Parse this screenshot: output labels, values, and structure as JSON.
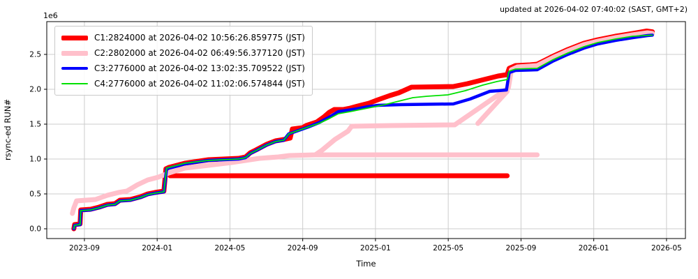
{
  "header": {
    "updated_text": "updated at 2026-04-02 07:40:02 (SAST, GMT+2)"
  },
  "chart_data": {
    "type": "line",
    "title": "",
    "xlabel": "Time",
    "ylabel": "rsync-ed RUN#",
    "y_offset_label": "1e6",
    "grid": true,
    "legend_position": "upper left",
    "x_unit": "months since 2023-01-01",
    "y_unit": "runs (millions, 1e6)",
    "xlim_months": [
      5.93,
      41.04
    ],
    "ylim": [
      -0.14,
      2.97
    ],
    "x_ticks": [
      {
        "month": 8,
        "label": "2023-09"
      },
      {
        "month": 12,
        "label": "2024-01"
      },
      {
        "month": 16,
        "label": "2024-05"
      },
      {
        "month": 20,
        "label": "2024-09"
      },
      {
        "month": 24,
        "label": "2025-01"
      },
      {
        "month": 28,
        "label": "2025-05"
      },
      {
        "month": 32,
        "label": "2025-09"
      },
      {
        "month": 36,
        "label": "2026-01"
      },
      {
        "month": 40,
        "label": "2026-05"
      }
    ],
    "y_ticks": [
      {
        "value": 0.0,
        "label": "0.0"
      },
      {
        "value": 0.5,
        "label": "0.5"
      },
      {
        "value": 1.0,
        "label": "1.0"
      },
      {
        "value": 1.5,
        "label": "1.5"
      },
      {
        "value": 2.0,
        "label": "2.0"
      },
      {
        "value": 2.5,
        "label": "2.5"
      }
    ],
    "series": [
      {
        "name": "C1",
        "legend": "C1:2824000 at 2026-04-02 10:56:26.859775 (JST)",
        "final_value": 2824000,
        "color": "#ff0000",
        "line_width": 7,
        "segments": [
          [
            [
              7.42,
              0.0
            ],
            [
              7.46,
              0.06
            ],
            [
              7.76,
              0.07
            ],
            [
              7.8,
              0.27
            ],
            [
              8.34,
              0.28
            ],
            [
              8.8,
              0.31
            ],
            [
              9.26,
              0.35
            ],
            [
              9.68,
              0.36
            ],
            [
              9.95,
              0.41
            ],
            [
              10.53,
              0.42
            ],
            [
              11.1,
              0.46
            ],
            [
              11.48,
              0.5
            ],
            [
              11.87,
              0.52
            ],
            [
              12.37,
              0.54
            ],
            [
              12.48,
              0.86
            ],
            [
              12.64,
              0.88
            ],
            [
              13.52,
              0.94
            ],
            [
              14.82,
              0.99
            ],
            [
              16.47,
              1.01
            ],
            [
              16.86,
              1.03
            ],
            [
              17.12,
              1.09
            ],
            [
              17.43,
              1.13
            ],
            [
              18.01,
              1.21
            ],
            [
              18.5,
              1.26
            ],
            [
              18.96,
              1.28
            ],
            [
              19.31,
              1.3
            ],
            [
              19.43,
              1.43
            ],
            [
              20.0,
              1.45
            ],
            [
              20.19,
              1.48
            ],
            [
              20.77,
              1.53
            ],
            [
              21.15,
              1.6
            ],
            [
              21.46,
              1.67
            ],
            [
              21.73,
              1.71
            ],
            [
              22.22,
              1.71
            ],
            [
              22.61,
              1.73
            ],
            [
              23.18,
              1.77
            ],
            [
              23.64,
              1.8
            ],
            [
              24.14,
              1.85
            ],
            [
              24.79,
              1.91
            ],
            [
              25.29,
              1.95
            ],
            [
              25.98,
              2.03
            ],
            [
              28.28,
              2.04
            ],
            [
              29.05,
              2.08
            ],
            [
              29.97,
              2.14
            ],
            [
              30.74,
              2.19
            ],
            [
              31.24,
              2.21
            ],
            [
              31.35,
              2.3
            ],
            [
              31.7,
              2.34
            ],
            [
              32.5,
              2.35
            ],
            [
              32.89,
              2.36
            ],
            [
              33.73,
              2.47
            ],
            [
              34.58,
              2.57
            ],
            [
              35.46,
              2.66
            ],
            [
              36.22,
              2.71
            ],
            [
              37.18,
              2.76
            ],
            [
              38.14,
              2.8
            ],
            [
              38.91,
              2.835
            ],
            [
              39.22,
              2.824
            ]
          ],
          [
            [
              12.71,
              0.76
            ],
            [
              31.24,
              0.76
            ]
          ]
        ]
      },
      {
        "name": "C2",
        "legend": "C2:2802000 at 2026-04-02 06:49:56.377120 (JST)",
        "final_value": 2802000,
        "color": "#ffc0cb",
        "line_width": 7,
        "segments": [
          [
            [
              7.34,
              0.22
            ],
            [
              7.42,
              0.3
            ],
            [
              7.57,
              0.4
            ],
            [
              8.61,
              0.42
            ],
            [
              9.26,
              0.48
            ],
            [
              9.87,
              0.52
            ],
            [
              10.33,
              0.54
            ],
            [
              10.91,
              0.63
            ],
            [
              11.48,
              0.7
            ],
            [
              12.06,
              0.74
            ],
            [
              12.64,
              0.8
            ],
            [
              13.52,
              0.87
            ],
            [
              14.82,
              0.91
            ],
            [
              16.09,
              0.95
            ],
            [
              16.86,
              0.98
            ],
            [
              17.62,
              1.01
            ],
            [
              18.66,
              1.03
            ],
            [
              19.27,
              1.05
            ],
            [
              20.69,
              1.06
            ],
            [
              21.08,
              1.13
            ],
            [
              21.77,
              1.28
            ],
            [
              22.49,
              1.4
            ],
            [
              22.69,
              1.47
            ],
            [
              24.91,
              1.48
            ],
            [
              28.36,
              1.49
            ],
            [
              31.31,
              2.02
            ],
            [
              31.47,
              2.28
            ],
            [
              31.8,
              2.32
            ],
            [
              32.89,
              2.34
            ],
            [
              33.73,
              2.45
            ],
            [
              34.58,
              2.55
            ],
            [
              35.46,
              2.64
            ],
            [
              36.22,
              2.69
            ],
            [
              37.18,
              2.74
            ],
            [
              38.14,
              2.78
            ],
            [
              38.95,
              2.81
            ],
            [
              39.22,
              2.802
            ]
          ],
          [
            [
              20.69,
              1.06
            ],
            [
              32.89,
              1.06
            ]
          ],
          [
            [
              29.63,
              1.51
            ],
            [
              31.24,
              1.97
            ]
          ]
        ]
      },
      {
        "name": "C3",
        "legend": "C3:2776000 at 2026-04-02 13:02:35.709522 (JST)",
        "final_value": 2776000,
        "color": "#0000ff",
        "line_width": 4.5,
        "segments": [
          [
            [
              7.42,
              0.0
            ],
            [
              7.46,
              0.05
            ],
            [
              7.76,
              0.06
            ],
            [
              7.8,
              0.26
            ],
            [
              8.34,
              0.27
            ],
            [
              8.8,
              0.3
            ],
            [
              9.26,
              0.34
            ],
            [
              9.68,
              0.35
            ],
            [
              9.95,
              0.4
            ],
            [
              10.53,
              0.41
            ],
            [
              11.1,
              0.45
            ],
            [
              11.48,
              0.49
            ],
            [
              11.87,
              0.51
            ],
            [
              12.37,
              0.53
            ],
            [
              12.52,
              0.86
            ],
            [
              13.52,
              0.93
            ],
            [
              14.82,
              0.98
            ],
            [
              16.47,
              1.0
            ],
            [
              16.86,
              1.02
            ],
            [
              17.12,
              1.08
            ],
            [
              17.43,
              1.12
            ],
            [
              18.01,
              1.2
            ],
            [
              18.5,
              1.25
            ],
            [
              18.96,
              1.27
            ],
            [
              19.23,
              1.36
            ],
            [
              20.31,
              1.46
            ],
            [
              20.88,
              1.52
            ],
            [
              21.46,
              1.6
            ],
            [
              21.96,
              1.68
            ],
            [
              22.49,
              1.7
            ],
            [
              22.99,
              1.72
            ],
            [
              23.57,
              1.75
            ],
            [
              24.14,
              1.77
            ],
            [
              25.41,
              1.78
            ],
            [
              28.28,
              1.79
            ],
            [
              29.2,
              1.86
            ],
            [
              30.28,
              1.97
            ],
            [
              31.2,
              1.99
            ],
            [
              31.35,
              2.24
            ],
            [
              31.7,
              2.27
            ],
            [
              32.89,
              2.28
            ],
            [
              33.73,
              2.4
            ],
            [
              34.58,
              2.5
            ],
            [
              35.46,
              2.59
            ],
            [
              36.22,
              2.65
            ],
            [
              37.18,
              2.7
            ],
            [
              38.14,
              2.74
            ],
            [
              38.95,
              2.77
            ],
            [
              39.22,
              2.776
            ]
          ]
        ]
      },
      {
        "name": "C4",
        "legend": "C4:2776000 at 2026-04-02 11:02:06.574844 (JST)",
        "final_value": 2776000,
        "color": "#00e000",
        "line_width": 1.8,
        "segments": [
          [
            [
              7.42,
              0.0
            ],
            [
              7.46,
              0.05
            ],
            [
              7.76,
              0.06
            ],
            [
              7.8,
              0.26
            ],
            [
              8.34,
              0.27
            ],
            [
              8.8,
              0.3
            ],
            [
              9.26,
              0.34
            ],
            [
              9.68,
              0.35
            ],
            [
              9.95,
              0.4
            ],
            [
              10.53,
              0.41
            ],
            [
              11.1,
              0.45
            ],
            [
              11.48,
              0.49
            ],
            [
              11.87,
              0.51
            ],
            [
              12.37,
              0.53
            ],
            [
              12.52,
              0.87
            ],
            [
              13.52,
              0.94
            ],
            [
              14.82,
              0.98
            ],
            [
              16.47,
              1.0
            ],
            [
              16.86,
              1.02
            ],
            [
              17.12,
              1.08
            ],
            [
              17.43,
              1.12
            ],
            [
              18.01,
              1.2
            ],
            [
              18.5,
              1.25
            ],
            [
              18.96,
              1.27
            ],
            [
              19.23,
              1.36
            ],
            [
              20.31,
              1.46
            ],
            [
              20.88,
              1.51
            ],
            [
              21.46,
              1.58
            ],
            [
              21.96,
              1.65
            ],
            [
              22.61,
              1.68
            ],
            [
              23.18,
              1.71
            ],
            [
              23.76,
              1.74
            ],
            [
              24.52,
              1.78
            ],
            [
              25.29,
              1.83
            ],
            [
              26.06,
              1.88
            ],
            [
              26.83,
              1.9
            ],
            [
              27.98,
              1.92
            ],
            [
              28.94,
              1.98
            ],
            [
              29.9,
              2.06
            ],
            [
              30.66,
              2.11
            ],
            [
              31.24,
              2.14
            ],
            [
              31.35,
              2.26
            ],
            [
              31.7,
              2.29
            ],
            [
              32.89,
              2.3
            ],
            [
              33.73,
              2.42
            ],
            [
              34.58,
              2.52
            ],
            [
              35.46,
              2.61
            ],
            [
              36.22,
              2.67
            ],
            [
              37.18,
              2.72
            ],
            [
              38.14,
              2.76
            ],
            [
              39.22,
              2.776
            ]
          ]
        ]
      }
    ],
    "colors": {
      "grid": "#cccccc",
      "spine": "#000000",
      "background": "#ffffff"
    }
  }
}
